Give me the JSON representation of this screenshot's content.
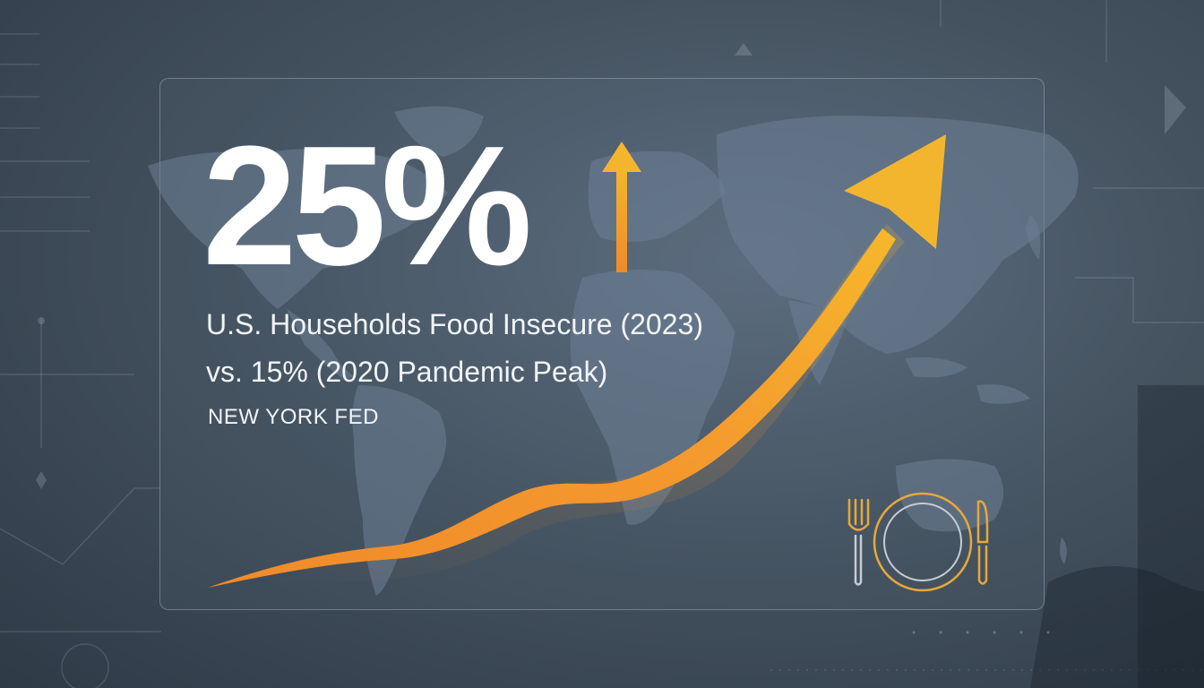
{
  "headline": {
    "value": "25%"
  },
  "subtitle": {
    "line1": "U.S. Households Food Insecure (2023)",
    "line2": "vs. 15% (2020 Pandemic Peak)",
    "source": "NEW YORK FED"
  },
  "icons": {
    "up_arrow": "up-arrow-icon",
    "trend_arrow": "trend-arrow",
    "dining": "fork-plate-knife-icon",
    "map": "world-map"
  },
  "colors": {
    "background": "#3b4858",
    "accent_orange": "#f0a030",
    "accent_yellow": "#f4b52e",
    "text": "#ffffff"
  }
}
